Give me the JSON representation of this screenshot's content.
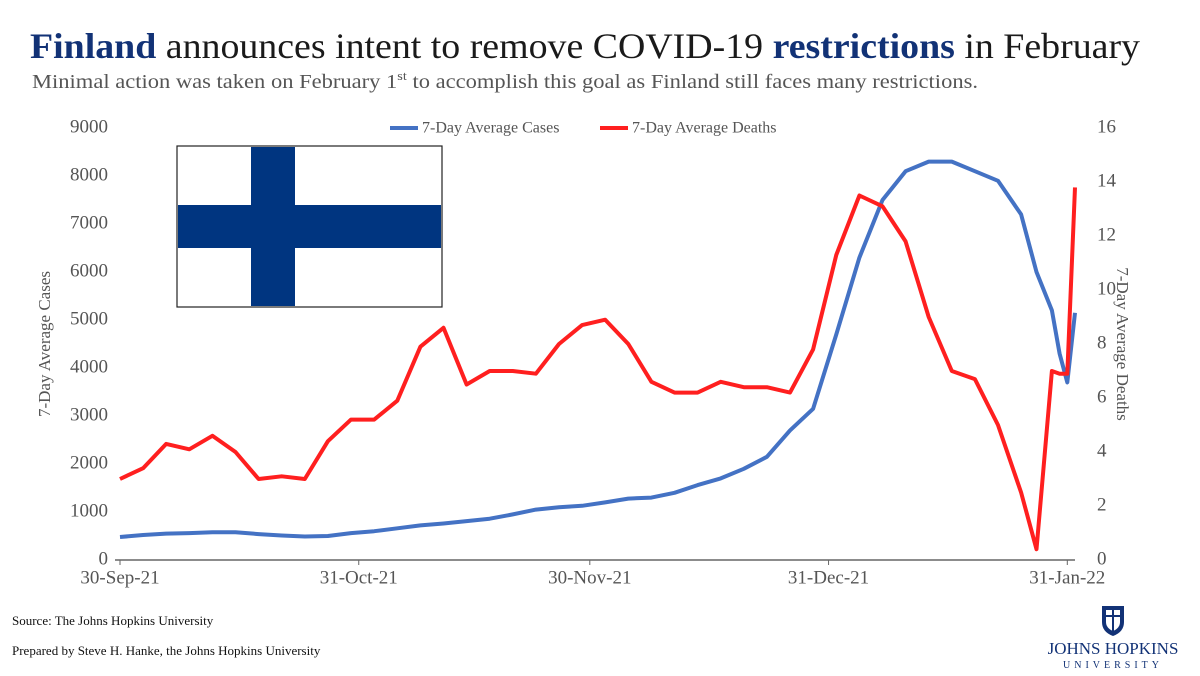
{
  "chart_data": {
    "type": "line",
    "title": [
      {
        "text": "Finland",
        "color": "#123276",
        "bold": true
      },
      {
        "text": " announces intent to remove COVID-19 ",
        "color": "#1a1a1a",
        "bold": false
      },
      {
        "text": "restrictions",
        "color": "#123276",
        "bold": true
      },
      {
        "text": " in February",
        "color": "#1a1a1a",
        "bold": false
      }
    ],
    "subtitle": [
      {
        "text": "Minimal action was taken on February 1",
        "superscript": false
      },
      {
        "text": "st",
        "superscript": true
      },
      {
        "text": " to accomplish this goal as Finland still faces many restrictions.",
        "superscript": false
      }
    ],
    "y_label": "7-Day Average Cases",
    "y2_label": "7-Day Average Deaths",
    "legend": "top",
    "grid": false,
    "x": [
      "2021-09-30",
      "2021-10-03",
      "2021-10-06",
      "2021-10-09",
      "2021-10-12",
      "2021-10-15",
      "2021-10-18",
      "2021-10-21",
      "2021-10-24",
      "2021-10-27",
      "2021-10-30",
      "2021-11-02",
      "2021-11-05",
      "2021-11-08",
      "2021-11-11",
      "2021-11-14",
      "2021-11-17",
      "2021-11-20",
      "2021-11-23",
      "2021-11-26",
      "2021-11-29",
      "2021-12-02",
      "2021-12-05",
      "2021-12-08",
      "2021-12-11",
      "2021-12-14",
      "2021-12-17",
      "2021-12-20",
      "2021-12-23",
      "2021-12-26",
      "2021-12-29",
      "2022-01-01",
      "2022-01-04",
      "2022-01-07",
      "2022-01-10",
      "2022-01-13",
      "2022-01-16",
      "2022-01-19",
      "2022-01-22",
      "2022-01-25",
      "2022-01-27",
      "2022-01-29",
      "2022-01-30",
      "2022-01-31",
      "2022-02-01"
    ],
    "xlim": [
      "2021-09-30",
      "2022-02-01"
    ],
    "xticks": [
      {
        "value": "2021-09-30",
        "label": "30-Sep-21"
      },
      {
        "value": "2021-10-31",
        "label": "31-Oct-21"
      },
      {
        "value": "2021-11-30",
        "label": "30-Nov-21"
      },
      {
        "value": "2021-12-31",
        "label": "31-Dec-21"
      },
      {
        "value": "2022-01-31",
        "label": "31-Jan-22"
      }
    ],
    "ylim": [
      0,
      9000
    ],
    "yticks": [
      0,
      1000,
      2000,
      3000,
      4000,
      5000,
      6000,
      7000,
      8000,
      9000
    ],
    "y2lim": [
      0,
      16
    ],
    "y2ticks": [
      0,
      2,
      4,
      6,
      8,
      10,
      12,
      14,
      16
    ],
    "series": [
      {
        "name": "7-Day Average Cases",
        "color": "#4472c4",
        "values": [
          480,
          520,
          550,
          560,
          580,
          580,
          540,
          510,
          490,
          500,
          560,
          600,
          660,
          720,
          760,
          810,
          860,
          950,
          1050,
          1100,
          1130,
          1200,
          1280,
          1300,
          1400,
          1560,
          1700,
          1900,
          2150,
          2700,
          3150,
          4700,
          6300,
          7500,
          8100,
          8300,
          8300,
          8100,
          7900,
          7200,
          6000,
          5200,
          4300,
          3700,
          5150
        ]
      },
      {
        "name": "7-Day Average Deaths",
        "color": "#ff1f1f",
        "axis": "y2",
        "values": [
          3.0,
          3.4,
          4.3,
          4.1,
          4.6,
          4.0,
          3.0,
          3.1,
          3.0,
          4.4,
          5.2,
          5.2,
          5.9,
          7.9,
          8.6,
          6.5,
          7.0,
          7.0,
          6.9,
          8.0,
          8.7,
          8.9,
          8.0,
          6.6,
          6.2,
          6.2,
          6.6,
          6.4,
          6.4,
          6.2,
          7.8,
          11.3,
          13.5,
          13.1,
          11.8,
          9.0,
          7.0,
          6.7,
          5.0,
          2.5,
          0.4,
          7.0,
          6.9,
          6.9,
          13.8
        ]
      }
    ]
  },
  "footer": {
    "source": "Source: The Johns Hopkins University",
    "prepared": "Prepared by Steve H. Hanke, the Johns Hopkins University",
    "logo_name": "JOHNS HOPKINS",
    "logo_sub": "UNIVERSITY"
  }
}
